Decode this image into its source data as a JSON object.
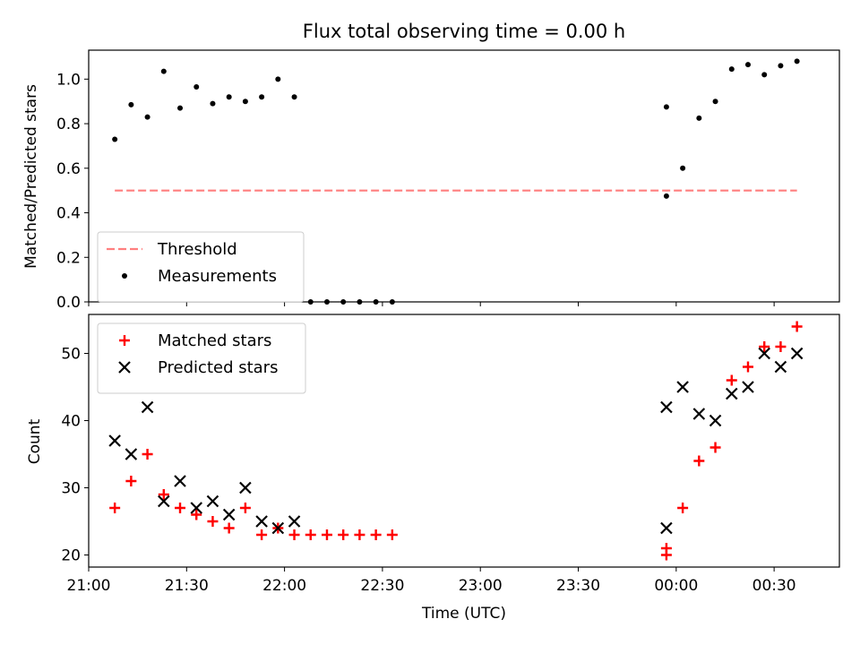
{
  "chart_data": [
    {
      "type": "scatter",
      "title": "Flux total observing time = 0.00 h",
      "ylabel": "Matched/Predicted stars",
      "xlabel": "",
      "ylim": [
        0,
        1.13
      ],
      "yticks": [
        0.0,
        0.2,
        0.4,
        0.6,
        0.8,
        1.0
      ],
      "ytick_labels": [
        "0.0",
        "0.2",
        "0.4",
        "0.6",
        "0.8",
        "1.0"
      ],
      "legend_position": "lower-left",
      "threshold": {
        "name": "Threshold",
        "value": 0.5,
        "x_start": "21:08",
        "x_end": "00:37",
        "color": "#ff7f7f",
        "style": "dashed"
      },
      "series": [
        {
          "name": "Measurements",
          "color": "#000000",
          "marker": "dot",
          "x": [
            "21:08",
            "21:13",
            "21:18",
            "21:23",
            "21:28",
            "21:33",
            "21:38",
            "21:43",
            "21:48",
            "21:53",
            "21:58",
            "22:03",
            "22:08",
            "22:13",
            "22:18",
            "22:23",
            "22:28",
            "22:33",
            "23:57",
            "23:57",
            "00:02",
            "00:07",
            "00:12",
            "00:17",
            "00:22",
            "00:27",
            "00:32",
            "00:37"
          ],
          "y": [
            0.73,
            0.885,
            0.83,
            1.035,
            0.87,
            0.965,
            0.89,
            0.92,
            0.9,
            0.92,
            1.0,
            0.92,
            0.0,
            0.0,
            0.0,
            0.0,
            0.0,
            0.0,
            0.475,
            0.875,
            0.6,
            0.825,
            0.9,
            1.045,
            1.065,
            1.02,
            1.06,
            1.08
          ]
        }
      ]
    },
    {
      "type": "scatter",
      "title": "",
      "xlabel": "Time (UTC)",
      "ylabel": "Count",
      "ylim": [
        18.2,
        55.8
      ],
      "yticks": [
        20,
        30,
        40,
        50
      ],
      "ytick_labels": [
        "20",
        "30",
        "40",
        "50"
      ],
      "xlim": [
        "21:00",
        "00:50"
      ],
      "xtick_labels": [
        "21:00",
        "21:30",
        "22:00",
        "22:30",
        "23:00",
        "23:30",
        "00:00",
        "00:30"
      ],
      "legend_position": "top-left",
      "series": [
        {
          "name": "Matched stars",
          "color": "#ff0000",
          "marker": "plus",
          "x": [
            "21:08",
            "21:13",
            "21:18",
            "21:23",
            "21:28",
            "21:33",
            "21:38",
            "21:43",
            "21:48",
            "21:53",
            "21:58",
            "22:03",
            "22:08",
            "22:13",
            "22:18",
            "22:23",
            "22:28",
            "22:33",
            "23:57",
            "23:57",
            "00:02",
            "00:07",
            "00:12",
            "00:17",
            "00:22",
            "00:27",
            "00:32",
            "00:37"
          ],
          "y": [
            27,
            31,
            35,
            29,
            27,
            26,
            25,
            24,
            27,
            23,
            24,
            23,
            23,
            23,
            23,
            23,
            23,
            23,
            20,
            21,
            27,
            34,
            36,
            46,
            48,
            51,
            51,
            54
          ]
        },
        {
          "name": "Predicted stars",
          "color": "#000000",
          "marker": "x",
          "x": [
            "21:08",
            "21:13",
            "21:18",
            "21:23",
            "21:28",
            "21:33",
            "21:38",
            "21:43",
            "21:48",
            "21:53",
            "21:58",
            "22:03",
            "23:57",
            "23:57",
            "00:02",
            "00:07",
            "00:12",
            "00:17",
            "00:22",
            "00:27",
            "00:32",
            "00:37"
          ],
          "y": [
            37,
            35,
            42,
            28,
            31,
            27,
            28,
            26,
            30,
            25,
            24,
            25,
            42,
            24,
            45,
            41,
            40,
            44,
            45,
            50,
            48,
            50
          ]
        }
      ]
    }
  ]
}
